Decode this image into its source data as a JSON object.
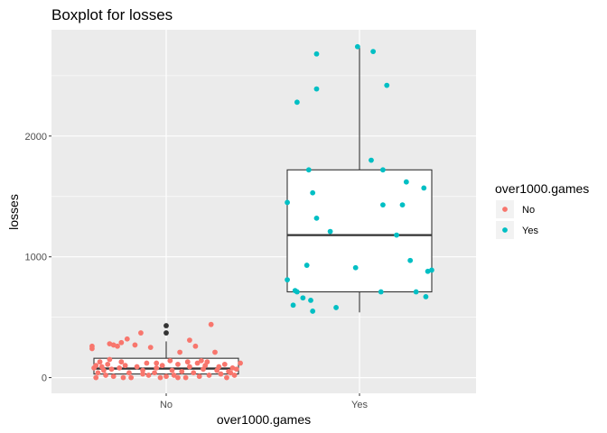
{
  "chart_data": {
    "type": "boxplot",
    "title": "Boxplot for losses",
    "xlabel": "over1000.games",
    "ylabel": "losses",
    "categories": [
      "No",
      "Yes"
    ],
    "y_ticks": [
      0,
      1000,
      2000
    ],
    "ylim": [
      -130,
      2880
    ],
    "grid": true,
    "legend": {
      "title": "over1000.games",
      "placement": "right",
      "entries": [
        {
          "label": "No",
          "color": "#F8766D"
        },
        {
          "label": "Yes",
          "color": "#00BFC4"
        }
      ]
    },
    "boxes": [
      {
        "category": "No",
        "min": 0,
        "q1": 30,
        "median": 75,
        "q3": 160,
        "max": 300,
        "outliers": [
          370,
          430
        ]
      },
      {
        "category": "Yes",
        "min": 540,
        "q1": 710,
        "median": 1180,
        "q3": 1720,
        "max": 2740,
        "outliers": []
      }
    ],
    "series": [
      {
        "name": "No",
        "color": "#F8766D",
        "points": [
          [
            -0.38,
            260
          ],
          [
            -0.38,
            240
          ],
          [
            -0.36,
            100
          ],
          [
            -0.37,
            80
          ],
          [
            -0.36,
            0
          ],
          [
            -0.35,
            40
          ],
          [
            -0.34,
            130
          ],
          [
            -0.33,
            90
          ],
          [
            -0.32,
            60
          ],
          [
            -0.31,
            20
          ],
          [
            -0.3,
            110
          ],
          [
            -0.29,
            150
          ],
          [
            -0.28,
            70
          ],
          [
            -0.27,
            10
          ],
          [
            -0.29,
            280
          ],
          [
            -0.27,
            270
          ],
          [
            -0.25,
            260
          ],
          [
            -0.24,
            80
          ],
          [
            -0.23,
            130
          ],
          [
            -0.23,
            290
          ],
          [
            -0.2,
            320
          ],
          [
            -0.21,
            100
          ],
          [
            -0.19,
            40
          ],
          [
            -0.18,
            0
          ],
          [
            -0.16,
            270
          ],
          [
            -0.15,
            90
          ],
          [
            -0.13,
            370
          ],
          [
            -0.12,
            60
          ],
          [
            -0.1,
            120
          ],
          [
            -0.09,
            20
          ],
          [
            -0.08,
            250
          ],
          [
            -0.06,
            40
          ],
          [
            -0.05,
            80
          ],
          [
            -0.03,
            0
          ],
          [
            -0.02,
            100
          ],
          [
            0.0,
            10
          ],
          [
            0.02,
            140
          ],
          [
            0.03,
            60
          ],
          [
            0.04,
            20
          ],
          [
            0.06,
            110
          ],
          [
            0.07,
            210
          ],
          [
            0.08,
            50
          ],
          [
            0.1,
            0
          ],
          [
            0.11,
            130
          ],
          [
            0.12,
            90
          ],
          [
            0.12,
            310
          ],
          [
            0.14,
            40
          ],
          [
            0.15,
            260
          ],
          [
            0.16,
            120
          ],
          [
            0.17,
            10
          ],
          [
            0.19,
            70
          ],
          [
            0.2,
            100
          ],
          [
            0.21,
            130
          ],
          [
            0.22,
            20
          ],
          [
            0.23,
            440
          ],
          [
            0.25,
            210
          ],
          [
            0.26,
            60
          ],
          [
            0.27,
            90
          ],
          [
            0.28,
            30
          ],
          [
            0.3,
            110
          ],
          [
            0.31,
            0
          ],
          [
            0.32,
            50
          ],
          [
            0.34,
            80
          ],
          [
            0.35,
            20
          ],
          [
            0.36,
            70
          ],
          [
            0.38,
            120
          ],
          [
            -0.22,
            0
          ],
          [
            0.06,
            0
          ],
          [
            -0.12,
            30
          ],
          [
            0.18,
            140
          ],
          [
            -0.05,
            120
          ],
          [
            0.33,
            40
          ]
        ]
      },
      {
        "name": "Yes",
        "color": "#00BFC4",
        "points": [
          [
            -0.32,
            2280
          ],
          [
            -0.22,
            2680
          ],
          [
            -0.22,
            2390
          ],
          [
            -0.26,
            1720
          ],
          [
            -0.37,
            1450
          ],
          [
            -0.24,
            1530
          ],
          [
            -0.22,
            1320
          ],
          [
            -0.15,
            1210
          ],
          [
            -0.27,
            930
          ],
          [
            -0.37,
            810
          ],
          [
            -0.33,
            720
          ],
          [
            -0.32,
            710
          ],
          [
            -0.29,
            660
          ],
          [
            -0.34,
            600
          ],
          [
            -0.25,
            640
          ],
          [
            -0.24,
            550
          ],
          [
            -0.12,
            580
          ],
          [
            -0.01,
            2740
          ],
          [
            0.07,
            2700
          ],
          [
            0.14,
            2420
          ],
          [
            0.06,
            1800
          ],
          [
            0.12,
            1720
          ],
          [
            0.12,
            1430
          ],
          [
            0.19,
            1180
          ],
          [
            -0.02,
            910
          ],
          [
            0.11,
            710
          ],
          [
            0.24,
            1620
          ],
          [
            0.33,
            1570
          ],
          [
            0.26,
            970
          ],
          [
            0.35,
            880
          ],
          [
            0.37,
            890
          ],
          [
            0.29,
            710
          ],
          [
            0.34,
            670
          ],
          [
            0.22,
            1430
          ]
        ]
      }
    ]
  }
}
